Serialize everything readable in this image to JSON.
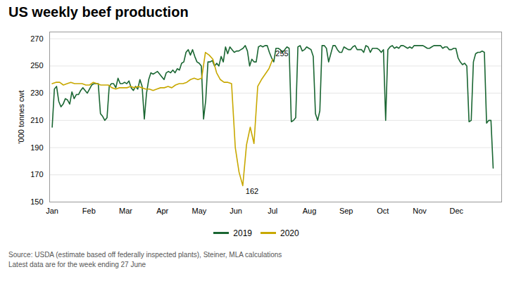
{
  "chart_data": {
    "type": "line",
    "title": "US weekly beef production",
    "subtitle": "Source: USDA (estimate based off federally inspected plants), Steiner, MLA calculations\nLatest data are for the week ending 27 June",
    "ylabel": "'000 tonnes cwt",
    "ylim": [
      150,
      275
    ],
    "yticks": [
      150,
      170,
      190,
      210,
      230,
      250,
      270
    ],
    "xlim": [
      -0.3,
      53
    ],
    "xticks": [
      {
        "value": 0,
        "label": "Jan"
      },
      {
        "value": 4.333333333333333,
        "label": "Feb"
      },
      {
        "value": 8.666666666666666,
        "label": "Mar"
      },
      {
        "value": 13,
        "label": "Apr"
      },
      {
        "value": 17.333333333333332,
        "label": "May"
      },
      {
        "value": 21.666666666666668,
        "label": "Jun"
      },
      {
        "value": 26,
        "label": "Jul"
      },
      {
        "value": 30.333333333333332,
        "label": "Aug"
      },
      {
        "value": 34.666666666666664,
        "label": "Sep"
      },
      {
        "value": 39,
        "label": "Oct"
      },
      {
        "value": 43.333333333333336,
        "label": "Nov"
      },
      {
        "value": 47.666666666666664,
        "label": "Dec"
      }
    ],
    "grid": true,
    "legend": "bottom",
    "series": [
      {
        "name": "2019",
        "color": "#1a6632",
        "x_span": [
          0,
          52
        ],
        "values": [
          205,
          233,
          235,
          224,
          220,
          222,
          226,
          225,
          222,
          231,
          226,
          229,
          229,
          232,
          234,
          232,
          230,
          233,
          236,
          237,
          237,
          237,
          215,
          213,
          210,
          212,
          235,
          237,
          237,
          234,
          241,
          237,
          237,
          238,
          237,
          239,
          234,
          232,
          235,
          233,
          240,
          235,
          211,
          230,
          240,
          245,
          244,
          245,
          246,
          244,
          242,
          240,
          245,
          246,
          245,
          247,
          245,
          248,
          247,
          252,
          253,
          260,
          262,
          258,
          262,
          257,
          253,
          252,
          250,
          211,
          225,
          253,
          253,
          254,
          250,
          252,
          250,
          257,
          253,
          264,
          259,
          264,
          262,
          260,
          261,
          261,
          262,
          263,
          265,
          261,
          250,
          255,
          253,
          253,
          264,
          265,
          264,
          265,
          265,
          260,
          256,
          253,
          263,
          263,
          262,
          260,
          262,
          264,
          263,
          209,
          210,
          212,
          264,
          265,
          261,
          262,
          264,
          263,
          262,
          257,
          215,
          210,
          217,
          265,
          265,
          263,
          253,
          259,
          265,
          265,
          262,
          260,
          260,
          264,
          263,
          262,
          262,
          264,
          265,
          262,
          262,
          262,
          260,
          265,
          264,
          260,
          263,
          263,
          263,
          262,
          260,
          262,
          210,
          262,
          264,
          265,
          263,
          264,
          263,
          265,
          265,
          264,
          263,
          264,
          263,
          265,
          265,
          265,
          265,
          265,
          264,
          263,
          263,
          264,
          265,
          265,
          265,
          265,
          263,
          264,
          264,
          262,
          262,
          263,
          263,
          256,
          253,
          251,
          252,
          250,
          209,
          210,
          253,
          259,
          260,
          260,
          261,
          260,
          208,
          210,
          210,
          175
        ]
      },
      {
        "name": "2020",
        "color": "#c8a800",
        "x_span": [
          0,
          26
        ],
        "values": [
          237,
          238,
          238,
          236,
          237,
          238,
          237,
          237,
          237,
          236,
          236,
          238,
          237,
          236,
          236,
          236,
          234,
          233,
          234,
          234,
          234,
          235,
          234,
          235,
          234,
          233,
          233,
          232,
          233,
          234,
          234,
          235,
          234,
          236,
          237,
          237,
          238,
          240,
          241,
          240,
          241,
          260,
          258,
          255,
          245,
          240,
          238,
          238,
          237,
          190,
          172,
          162,
          192,
          205,
          193,
          235,
          240,
          244,
          248,
          255
        ]
      }
    ],
    "annotations": [
      {
        "text": "162",
        "series": "2020",
        "index": 51,
        "position": "below"
      },
      {
        "text": "255",
        "series": "2020",
        "index": 59,
        "position": "above"
      }
    ]
  }
}
